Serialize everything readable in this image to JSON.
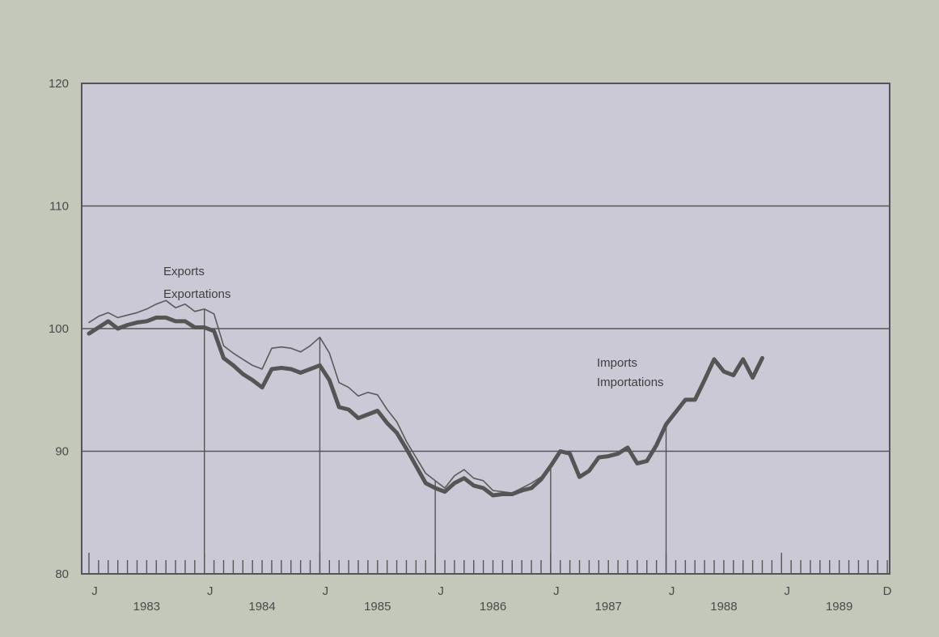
{
  "chart_data": {
    "type": "line",
    "title": "",
    "xlabel": "",
    "ylabel": "",
    "ylim": [
      80,
      120
    ],
    "yticks": [
      80,
      90,
      100,
      110,
      120
    ],
    "xlim": [
      "1983-01",
      "1989-12"
    ],
    "month_markers": [
      "J",
      "J",
      "J",
      "J",
      "J",
      "J",
      "J",
      "D"
    ],
    "year_labels": [
      "1983",
      "1984",
      "1985",
      "1986",
      "1987",
      "1988",
      "1989"
    ],
    "grid": true,
    "legend": "none",
    "colors": {
      "background": "#c3c8bb",
      "plot_area": "#ccc9d6",
      "exports_line": "#5a5a5a",
      "imports_line": "#555555",
      "grid": "#555555"
    },
    "series": [
      {
        "name": "Exports",
        "name_fr": "Exportations",
        "start": "1983-01",
        "values": [
          100.5,
          101.0,
          101.3,
          100.9,
          101.1,
          101.3,
          101.6,
          102.0,
          102.3,
          101.7,
          102.0,
          101.4,
          101.6,
          101.2,
          98.6,
          98.0,
          97.5,
          97.0,
          96.7,
          98.4,
          98.5,
          98.4,
          98.1,
          98.6,
          99.3,
          98.0,
          95.6,
          95.2,
          94.5,
          94.8,
          94.6,
          93.4,
          92.4,
          90.8,
          89.5,
          88.2,
          87.6,
          87.0,
          88.0,
          88.5,
          87.8,
          87.6,
          86.8,
          86.7,
          86.6,
          87.0,
          87.4,
          87.9
        ]
      },
      {
        "name": "Imports",
        "name_fr": "Importations",
        "start": "1983-01",
        "values": [
          99.6,
          100.1,
          100.6,
          100.0,
          100.3,
          100.5,
          100.6,
          100.9,
          100.9,
          100.6,
          100.6,
          100.1,
          100.1,
          99.8,
          97.6,
          97.0,
          96.3,
          95.8,
          95.2,
          96.7,
          96.8,
          96.7,
          96.4,
          96.7,
          97.0,
          95.8,
          93.6,
          93.4,
          92.7,
          93.0,
          93.3,
          92.3,
          91.5,
          90.2,
          88.8,
          87.4,
          87.0,
          86.7,
          87.4,
          87.8,
          87.2,
          87.0,
          86.4,
          86.5,
          86.5,
          86.8,
          87.0,
          87.7,
          88.8,
          90.0,
          89.8,
          87.9,
          88.4,
          89.5,
          89.6,
          89.8,
          90.3,
          89.0,
          89.2,
          90.5,
          92.2,
          93.2,
          94.2,
          94.2,
          95.8,
          97.5,
          96.5,
          96.2,
          97.5,
          96.0,
          97.6
        ]
      }
    ]
  }
}
